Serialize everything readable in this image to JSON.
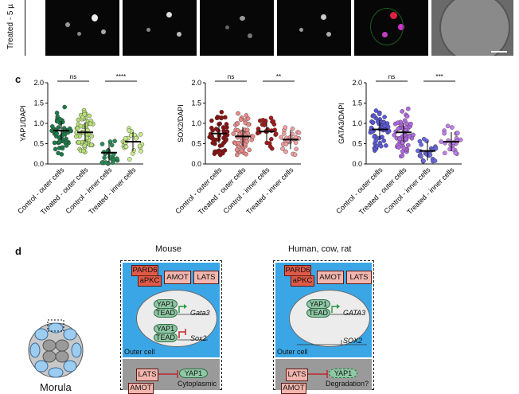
{
  "panels": {
    "top_strip": {
      "side_label": "Treated - 5 µ"
    },
    "c": {
      "letter": "c",
      "colors": {
        "yap1": [
          "#1f7a4a",
          "#b8e07a",
          "#2a8a55",
          "#c8ea8c"
        ],
        "sox2": [
          "#8a1212",
          "#e88a88",
          "#a01c1c",
          "#f0a0a0"
        ],
        "gata3": [
          "#5a58d8",
          "#b06ae0",
          "#6a68e0",
          "#c080ea"
        ]
      }
    },
    "d": {
      "letter": "d",
      "mouse_title": "Mouse",
      "human_title": "Human, cow, rat",
      "morula_label": "Morula",
      "outer_cell": "Outer cell",
      "pard6": "PARD6",
      "apkc": "aPKC",
      "amot": "AMOT",
      "lats": "LATS",
      "yap1": "YAP1",
      "tead": "TEAD",
      "gata3_mouse": "Gata3",
      "sox2_mouse": "Sox2",
      "gata3_human": "GATA3",
      "sox2_human": "SOX2",
      "cytoplasmic": "Cytoplasmic",
      "degradation": "Degradation?"
    }
  },
  "chart_data": [
    {
      "type": "scatter",
      "ylabel": "YAP1/DAPI",
      "ylim": [
        0,
        2.0
      ],
      "yticks": [
        "0.0",
        "0.5",
        "1.0",
        "1.5",
        "2.0"
      ],
      "categories": [
        "Control - outer cells",
        "Treated - outer cells",
        "Control - inner cells",
        "Treated - inner cells"
      ],
      "medians": [
        0.82,
        0.78,
        0.28,
        0.55
      ],
      "significance": [
        {
          "groups": [
            0,
            1
          ],
          "label": "ns"
        },
        {
          "groups": [
            2,
            3
          ],
          "label": "****"
        }
      ]
    },
    {
      "type": "scatter",
      "ylabel": "SOX2/DAPI",
      "ylim": [
        0,
        2.0
      ],
      "yticks": [
        "0.0",
        "0.5",
        "1.0",
        "1.5",
        "2.0"
      ],
      "categories": [
        "Control - outer cells",
        "Treated - outer cells",
        "Control - inner cells",
        "Treated - inner cells"
      ],
      "medians": [
        0.75,
        0.68,
        0.8,
        0.6
      ],
      "significance": [
        {
          "groups": [
            0,
            1
          ],
          "label": "ns"
        },
        {
          "groups": [
            2,
            3
          ],
          "label": "**"
        }
      ]
    },
    {
      "type": "scatter",
      "ylabel": "GATA3/DAPI",
      "ylim": [
        0,
        2.0
      ],
      "yticks": [
        "0.0",
        "0.5",
        "1.0",
        "1.5",
        "2.0"
      ],
      "categories": [
        "Control - outer cells",
        "Treated - outer cells",
        "Control - inner cells",
        "Treated - inner cells"
      ],
      "medians": [
        0.85,
        0.78,
        0.32,
        0.55
      ],
      "significance": [
        {
          "groups": [
            0,
            1
          ],
          "label": "ns"
        },
        {
          "groups": [
            2,
            3
          ],
          "label": "***"
        }
      ]
    }
  ]
}
